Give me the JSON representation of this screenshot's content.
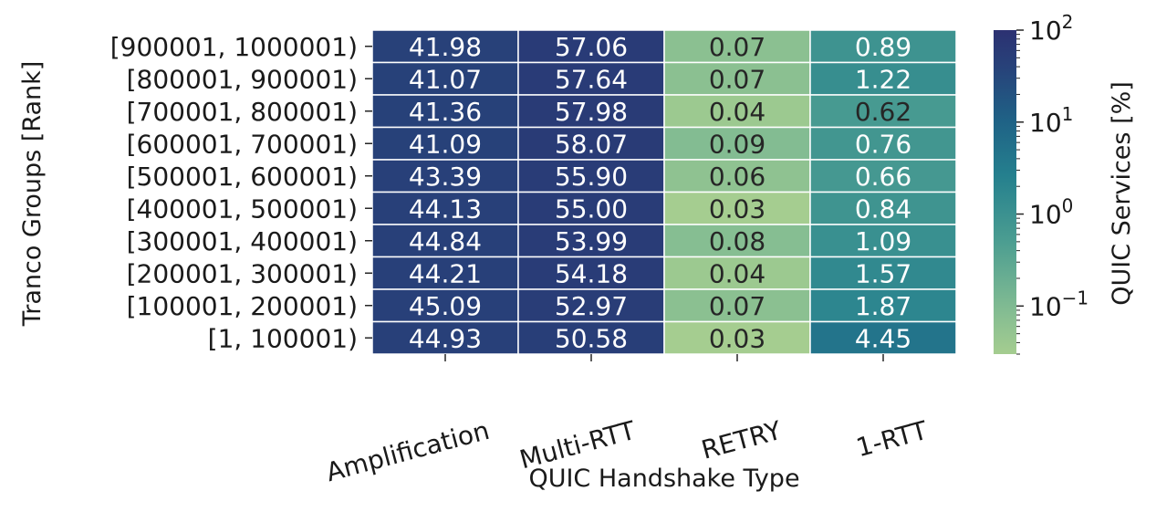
{
  "chart_data": {
    "type": "heatmap",
    "title": "",
    "xlabel": "QUIC Handshake Type",
    "ylabel": "Tranco Groups [Rank]",
    "columns": [
      "Amplification",
      "Multi-RTT",
      "RETRY",
      "1-RTT"
    ],
    "rows": [
      "[900001, 1000001)",
      "[800001, 900001)",
      "[700001, 800001)",
      "[600001, 700001)",
      "[500001, 600001)",
      "[400001, 500001)",
      "[300001, 400001)",
      "[200001, 300001)",
      "[100001, 200001)",
      "[1, 100001)"
    ],
    "values": [
      [
        41.98,
        57.06,
        0.07,
        0.89
      ],
      [
        41.07,
        57.64,
        0.07,
        1.22
      ],
      [
        41.36,
        57.98,
        0.04,
        0.62
      ],
      [
        41.09,
        58.07,
        0.09,
        0.76
      ],
      [
        43.39,
        55.9,
        0.06,
        0.66
      ],
      [
        44.13,
        55.0,
        0.03,
        0.84
      ],
      [
        44.84,
        53.99,
        0.08,
        1.09
      ],
      [
        44.21,
        54.18,
        0.04,
        1.57
      ],
      [
        45.09,
        52.97,
        0.07,
        1.87
      ],
      [
        44.93,
        50.58,
        0.03,
        4.45
      ]
    ],
    "value_labels": [
      [
        "41.98",
        "57.06",
        "0.07",
        "0.89"
      ],
      [
        "41.07",
        "57.64",
        "0.07",
        "1.22"
      ],
      [
        "41.36",
        "57.98",
        "0.04",
        "0.62"
      ],
      [
        "41.09",
        "58.07",
        "0.09",
        "0.76"
      ],
      [
        "43.39",
        "55.90",
        "0.06",
        "0.66"
      ],
      [
        "44.13",
        "55.00",
        "0.03",
        "0.84"
      ],
      [
        "44.84",
        "53.99",
        "0.08",
        "1.09"
      ],
      [
        "44.21",
        "54.18",
        "0.04",
        "1.57"
      ],
      [
        "45.09",
        "52.97",
        "0.07",
        "1.87"
      ],
      [
        "44.93",
        "50.58",
        "0.03",
        "4.45"
      ]
    ],
    "colorbar": {
      "label": "QUIC Services [%]",
      "scale": "log",
      "range": [
        0.03,
        100
      ],
      "ticks": [
        {
          "value": 100,
          "base": "10",
          "exp": "2"
        },
        {
          "value": 10,
          "base": "10",
          "exp": "1"
        },
        {
          "value": 1,
          "base": "10",
          "exp": "0"
        },
        {
          "value": 0.1,
          "base": "10",
          "exp": "−1"
        }
      ],
      "colormap": "crest",
      "color_low": "#a5cd90",
      "color_high": "#2c3172"
    }
  }
}
